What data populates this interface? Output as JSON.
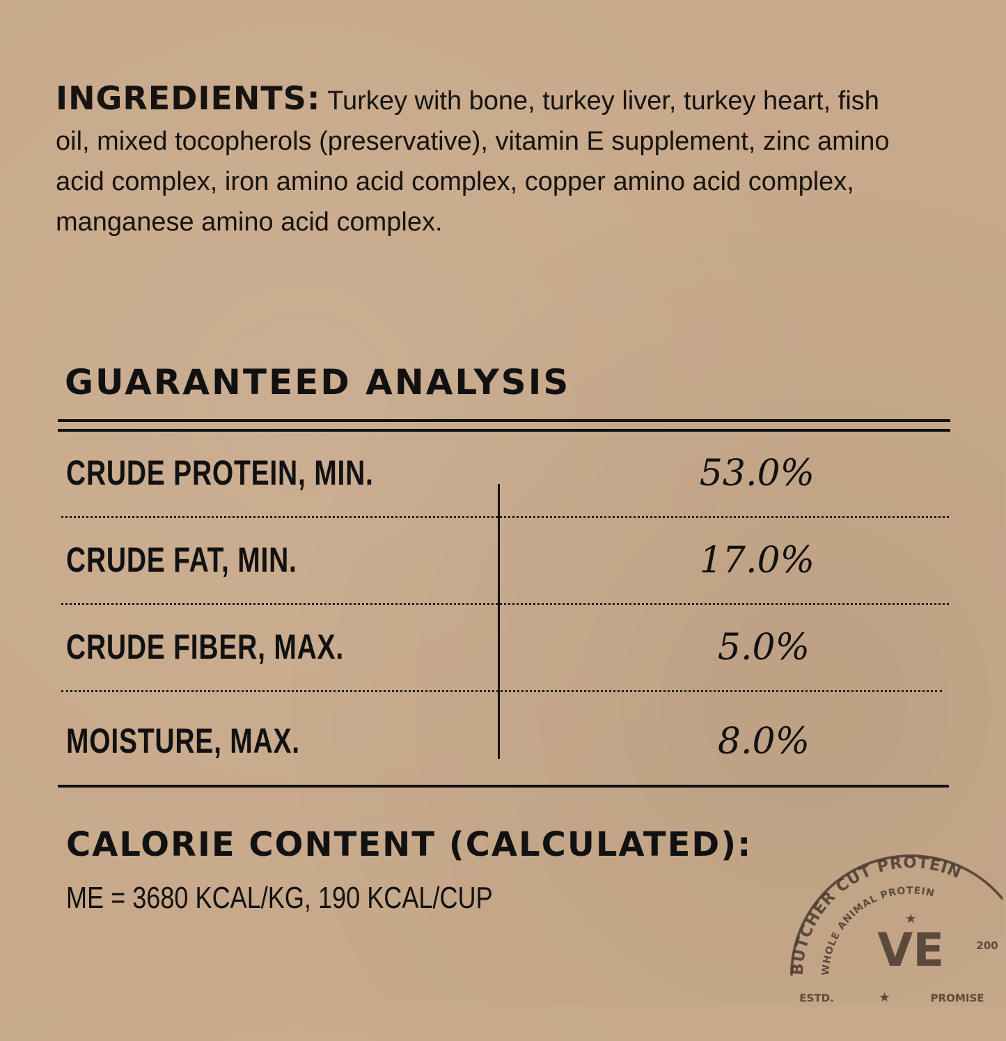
{
  "ingredients": {
    "label": "INGREDIENTS:",
    "text": "Turkey with bone, turkey liver, turkey heart, fish oil, mixed tocopherols (preservative), vitamin E supplement, zinc amino acid complex, iron amino acid complex, copper amino acid complex, manganese amino acid complex."
  },
  "analysis": {
    "title": "GUARANTEED ANALYSIS",
    "rows": [
      {
        "label": "CRUDE PROTEIN, MIN.",
        "value": "53.0%"
      },
      {
        "label": "CRUDE FAT, MIN.",
        "value": "17.0%"
      },
      {
        "label": "CRUDE FIBER, MAX.",
        "value": "5.0%"
      },
      {
        "label": "MOISTURE, MAX.",
        "value": "8.0%"
      }
    ]
  },
  "calorie": {
    "title": "CALORIE CONTENT (CALCULATED):",
    "value": "ME = 3680 KCAL/KG, 190 KCAL/CUP"
  },
  "stamp": {
    "outer": "BUTCHER CUT PROTEIN",
    "inner": "WHOLE ANIMAL PROTEIN",
    "logo": "VE",
    "estd": "ESTD.",
    "year": "200",
    "promise": "PROMISE"
  },
  "colors": {
    "background": "#c8a98b",
    "ink": "#111111",
    "stamp": "#4a3b2e"
  }
}
